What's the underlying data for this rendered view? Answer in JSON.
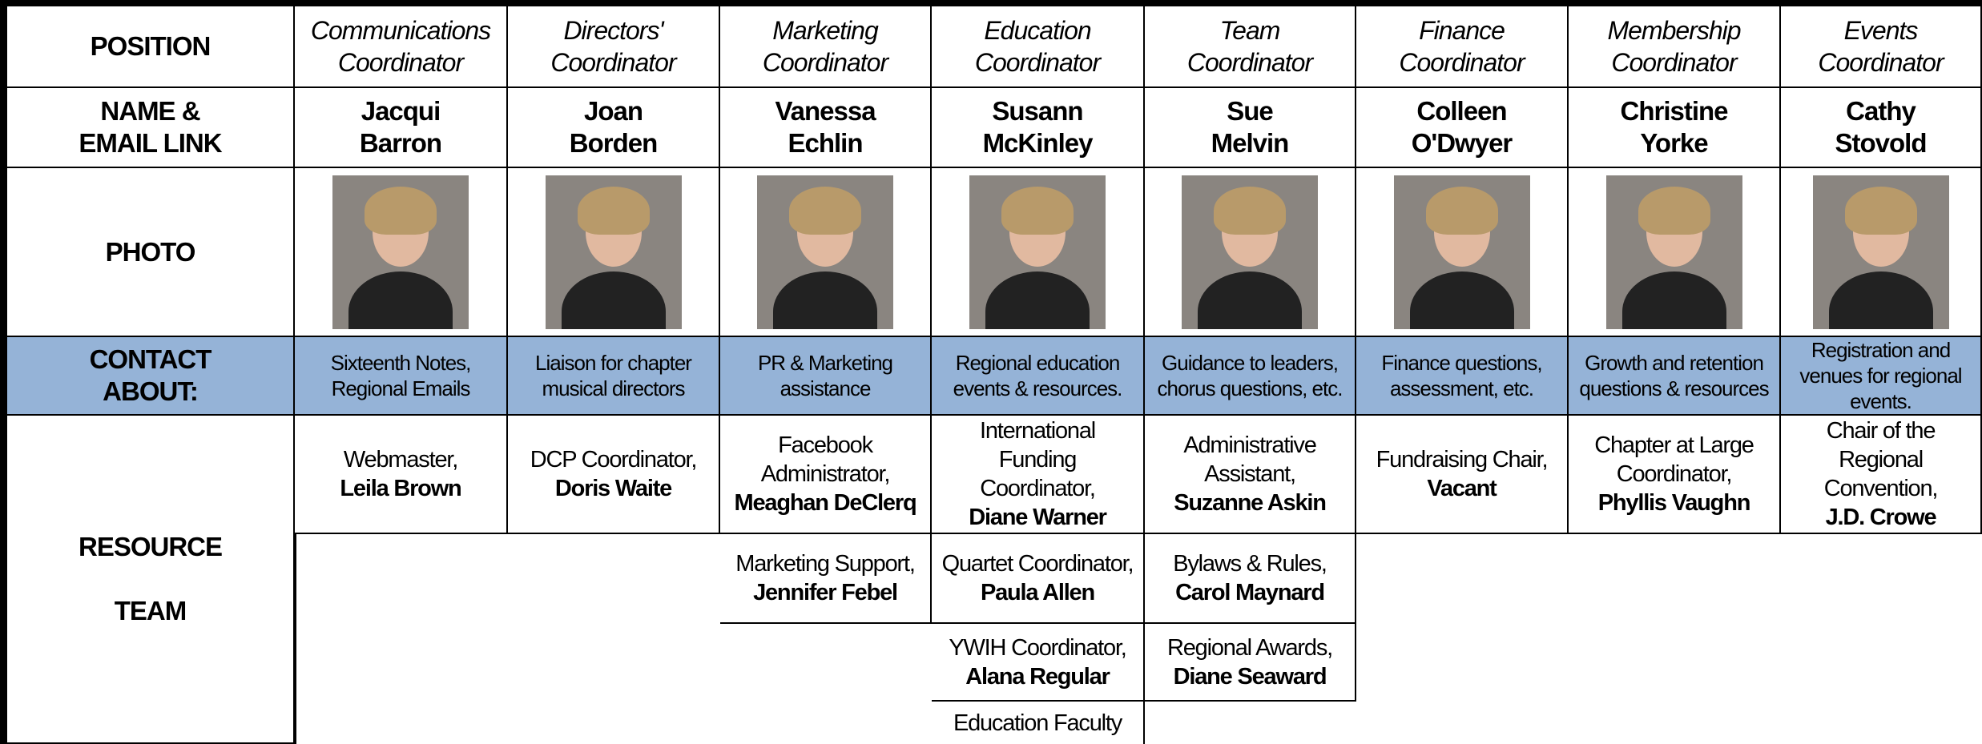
{
  "row_labels": {
    "position": [
      "POSITION"
    ],
    "name": [
      "NAME &",
      "EMAIL LINK"
    ],
    "photo": [
      "PHOTO"
    ],
    "contact": [
      "CONTACT",
      "ABOUT:"
    ],
    "resource": [
      "RESOURCE",
      "TEAM"
    ]
  },
  "columns": [
    {
      "position": [
        "Communications",
        "Coordinator"
      ],
      "name": [
        "Jacqui",
        "Barron"
      ],
      "contact": "Sixteenth Notes, Regional Emails",
      "resources": [
        {
          "role": "Webmaster,",
          "name": "Leila Brown"
        }
      ]
    },
    {
      "position": [
        "Directors'",
        "Coordinator"
      ],
      "name": [
        "Joan",
        "Borden"
      ],
      "contact": "Liaison for chapter musical directors",
      "resources": [
        {
          "role": "DCP Coordinator,",
          "name": "Doris Waite"
        }
      ]
    },
    {
      "position": [
        "Marketing",
        "Coordinator"
      ],
      "name": [
        "Vanessa",
        "Echlin"
      ],
      "contact": "PR & Marketing assistance",
      "resources": [
        {
          "role": "Facebook Administrator,",
          "name": "Meaghan DeClerq"
        },
        {
          "role": "Marketing Support,",
          "name": "Jennifer Febel"
        }
      ]
    },
    {
      "position": [
        "Education",
        "Coordinator"
      ],
      "name": [
        "Susann",
        "McKinley"
      ],
      "contact": "Regional education events & resources.",
      "resources": [
        {
          "role": "International Funding Coordinator,",
          "name": "Diane Warner"
        },
        {
          "role": "Quartet Coordinator,",
          "name": "Paula Allen"
        },
        {
          "role": "YWIH Coordinator,",
          "name": "Alana Regular"
        },
        {
          "role": "Education Faculty"
        }
      ]
    },
    {
      "position": [
        "Team",
        "Coordinator"
      ],
      "name": [
        "Sue",
        "Melvin"
      ],
      "contact": "Guidance to leaders, chorus questions, etc.",
      "resources": [
        {
          "role": "Administrative Assistant,",
          "name": "Suzanne Askin"
        },
        {
          "role": "Bylaws & Rules,",
          "name": "Carol Maynard"
        },
        {
          "role": "Regional Awards,",
          "name": "Diane Seaward"
        }
      ]
    },
    {
      "position": [
        "Finance",
        "Coordinator"
      ],
      "name": [
        "Colleen",
        "O'Dwyer"
      ],
      "contact": "Finance questions, assessment, etc.",
      "resources": [
        {
          "role": "Fundraising Chair,",
          "name": "Vacant"
        }
      ]
    },
    {
      "position": [
        "Membership",
        "Coordinator"
      ],
      "name": [
        "Christine",
        "Yorke"
      ],
      "contact": "Growth and retention questions & resources",
      "resources": [
        {
          "role": "Chapter at Large Coordinator,",
          "name": "Phyllis Vaughn"
        }
      ]
    },
    {
      "position": [
        "Events",
        "Coordinator"
      ],
      "name": [
        "Cathy",
        "Stovold"
      ],
      "contact": "Registration and venues for regional events.",
      "resources": [
        {
          "role": "Chair of the Regional Convention,",
          "name": "J.D. Crowe"
        }
      ]
    }
  ]
}
